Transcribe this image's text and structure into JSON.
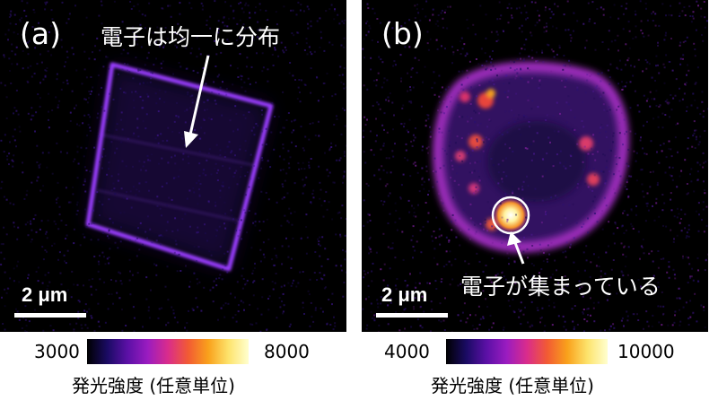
{
  "panel_a": {
    "tag": "(a)",
    "annotation": "電子は均一に分布",
    "scale_bar": "2 μm",
    "colorbar": {
      "min": "3000",
      "max": "8000",
      "label": "発光強度 (任意単位)"
    }
  },
  "panel_b": {
    "tag": "(b)",
    "annotation": "電子が集まっている",
    "scale_bar": "2 μm",
    "colorbar": {
      "min": "4000",
      "max": "10000",
      "label": "発光強度 (任意単位)"
    }
  },
  "colormap": [
    "#000000",
    "#1a0b63",
    "#5b10a6",
    "#9a1cc0",
    "#d92c8c",
    "#f25a34",
    "#f9a11b",
    "#fde36c",
    "#ffffcf"
  ]
}
